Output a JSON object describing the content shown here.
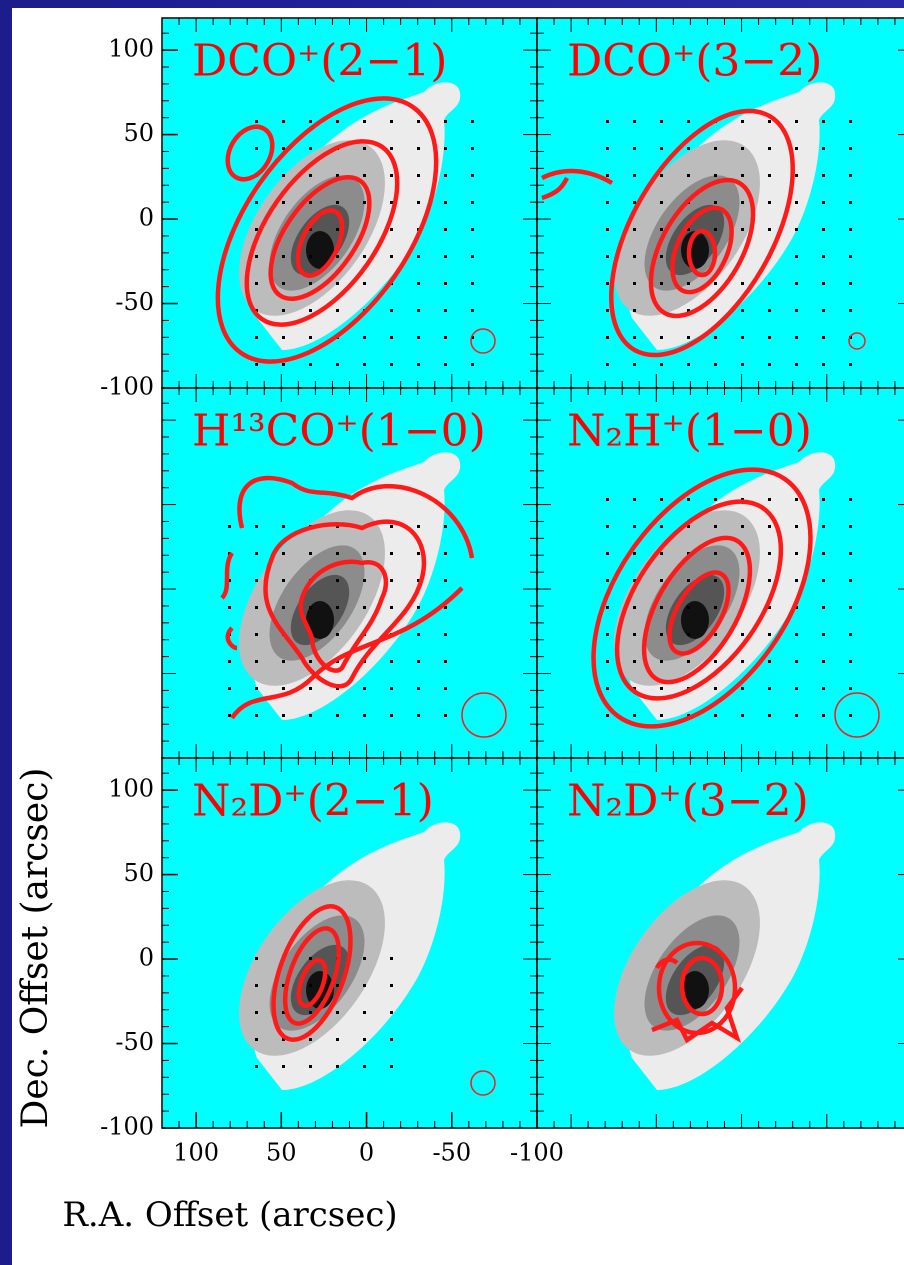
{
  "chart_data": {
    "type": "contour",
    "panels": [
      "DCO⁺(2−1)",
      "DCO⁺(3−2)",
      "H¹³CO⁺(1−0)",
      "N₂H⁺(1−0)",
      "N₂D⁺(2−1)",
      "N₂D⁺(3−2)"
    ],
    "xlabel": "R.A. Offset (arcsec)",
    "ylabel": "Dec. Offset (arcsec)",
    "xlim": [
      120,
      -100
    ],
    "ylim": [
      -100,
      119
    ],
    "xticks": [
      100,
      50,
      0,
      -50,
      -100
    ],
    "yticks": [
      100,
      50,
      0,
      -50,
      -100
    ],
    "color": "#ff0000",
    "background": "#00ffff"
  }
}
